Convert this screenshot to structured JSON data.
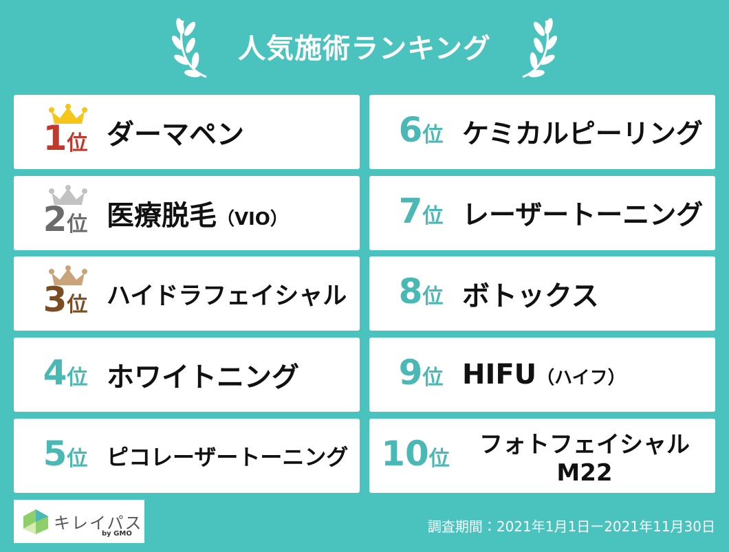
{
  "header": {
    "title": "人気施術ランキング"
  },
  "rankings": [
    {
      "rank": "1",
      "unit": "位",
      "name": "ダーマペン"
    },
    {
      "rank": "2",
      "unit": "位",
      "name": "医療脱毛",
      "note": "（VIO）"
    },
    {
      "rank": "3",
      "unit": "位",
      "name": "ハイドラフェイシャル"
    },
    {
      "rank": "4",
      "unit": "位",
      "name": "ホワイトニング"
    },
    {
      "rank": "5",
      "unit": "位",
      "name": "ピコレーザートーニング"
    },
    {
      "rank": "6",
      "unit": "位",
      "name": "ケミカルピーリング"
    },
    {
      "rank": "7",
      "unit": "位",
      "name": "レーザートーニング"
    },
    {
      "rank": "8",
      "unit": "位",
      "name": "ボトックス"
    },
    {
      "rank": "9",
      "unit": "位",
      "name": "HIFU",
      "note": "（ハイフ）"
    },
    {
      "rank": "10",
      "unit": "位",
      "name": "フォトフェイシャル",
      "name2": "M22"
    }
  ],
  "footer": {
    "logo": "キレイパス",
    "logo_by": "by GMO",
    "period": "調査期間：2021年1月1日ー2021年11月30日"
  }
}
